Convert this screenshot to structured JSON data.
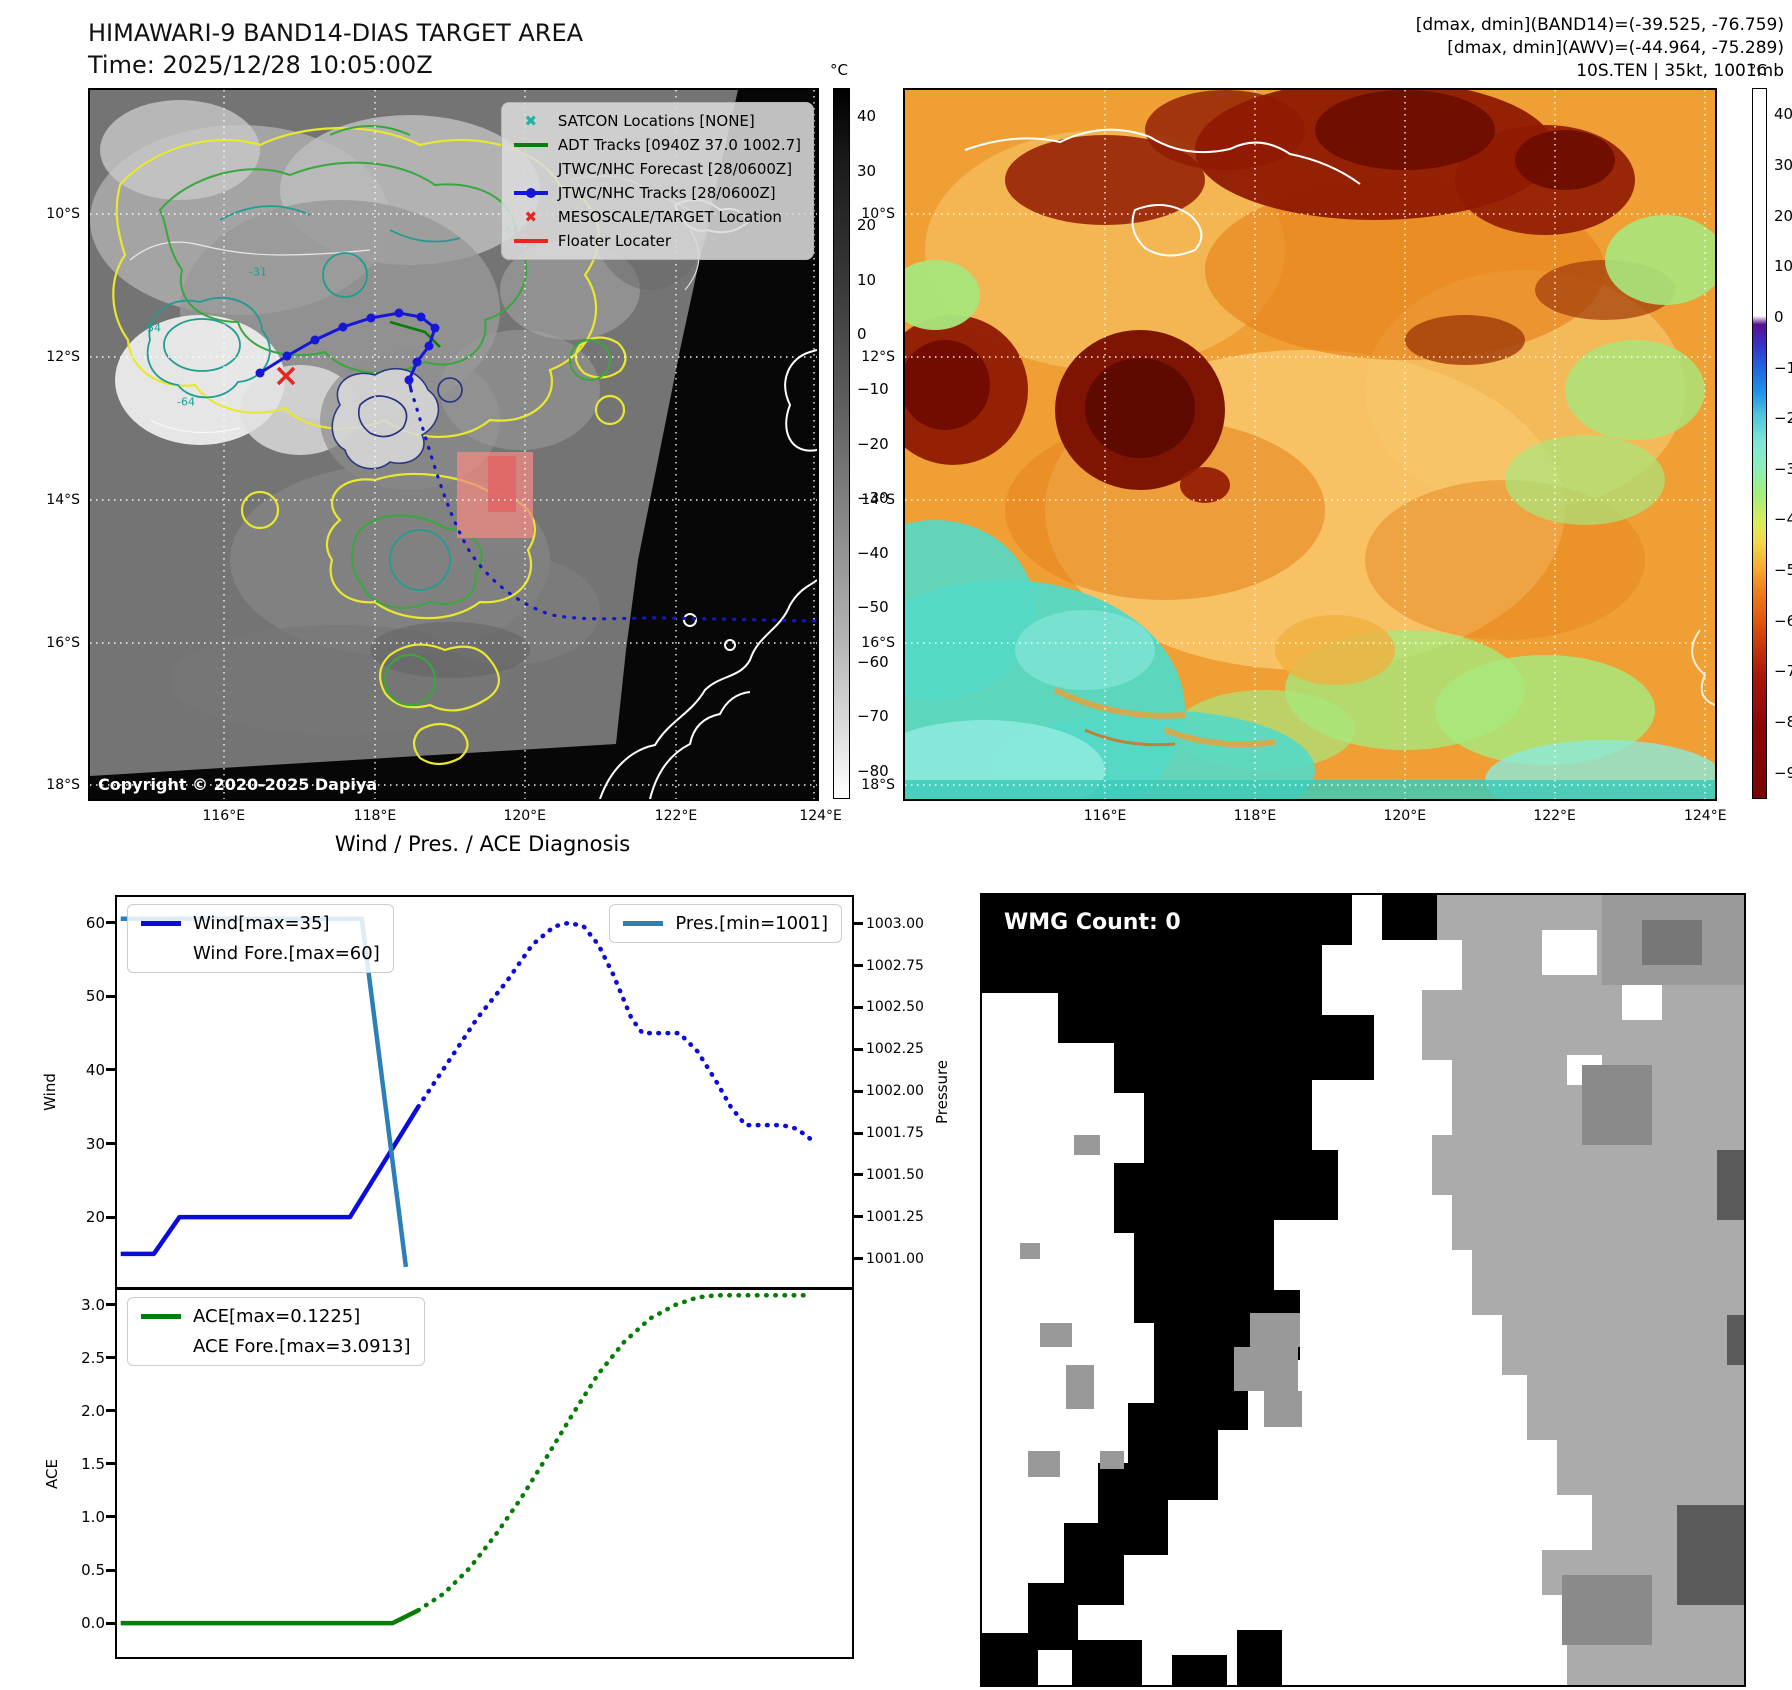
{
  "header": {
    "title": "HIMAWARI-9 BAND14-DIAS TARGET AREA",
    "time": "Time: 2025/12/28 10:05:00Z",
    "info_line1": "[dmax, dmin](BAND14)=(-39.525, -76.759)",
    "info_line2": "[dmax, dmin](AWV)=(-44.964, -75.289)",
    "info_line3": "10S.TEN | 35kt, 1001mb"
  },
  "band14_map": {
    "legend": [
      {
        "label": "SATCON Locations [NONE]",
        "marker": "x",
        "color": "#1fb3a7"
      },
      {
        "label": "ADT Tracks [0940Z 37.0 1002.7]",
        "marker": "line",
        "color": "#087d08"
      },
      {
        "label": "JTWC/NHC Forecast [28/0600Z]",
        "marker": "dotted",
        "color": "#2222e6"
      },
      {
        "label": "JTWC/NHC Tracks [28/0600Z]",
        "marker": "line-dot",
        "color": "#1616d9"
      },
      {
        "label": "MESOSCALE/TARGET Location",
        "marker": "x",
        "color": "#e8251f"
      },
      {
        "label": "Floater Locater",
        "marker": "line",
        "color": "#e8251f"
      }
    ],
    "contour_labels": [
      "-31",
      "-54",
      "-64",
      "-64"
    ],
    "copyright": "Copyright © 2020-2025 Dapiya",
    "lat_ticks": [
      "10°S",
      "12°S",
      "14°S",
      "16°S",
      "18°S"
    ],
    "lon_ticks": [
      "116°E",
      "118°E",
      "120°E",
      "122°E",
      "124°E"
    ],
    "colorbar": {
      "unit": "°C",
      "ticks": [
        "40",
        "30",
        "20",
        "10",
        "0",
        "−10",
        "−20",
        "−30",
        "−40",
        "−50",
        "−60",
        "−70",
        "−80"
      ]
    }
  },
  "awv_map": {
    "lat_ticks": [
      "10°S",
      "12°S",
      "14°S",
      "16°S",
      "18°S"
    ],
    "lon_ticks": [
      "116°E",
      "118°E",
      "120°E",
      "122°E",
      "124°E"
    ],
    "colorbar": {
      "unit": "°C",
      "ticks": [
        "40",
        "30",
        "20",
        "10",
        "0",
        "−10",
        "−20",
        "−30",
        "−40",
        "−50",
        "−60",
        "−70",
        "−80",
        "−90"
      ]
    }
  },
  "diagnosis": {
    "title": "Wind / Pres. / ACE Diagnosis"
  },
  "wmg": {
    "count_label": "WMG Count: 0"
  },
  "chart_data": [
    {
      "type": "line",
      "name": "wind-pressure",
      "title": "Wind / Pres. / ACE Diagnosis",
      "xlabel": "",
      "ylabel": "Wind",
      "y2label": "Pressure",
      "ylim": [
        10.5,
        63.5
      ],
      "yticks": [
        "20",
        "30",
        "40",
        "50",
        "60"
      ],
      "y2lim": [
        1000.83,
        1003.16
      ],
      "y2ticks": [
        "1001.00",
        "1001.25",
        "1001.50",
        "1001.75",
        "1002.00",
        "1002.25",
        "1002.50",
        "1002.75",
        "1003.00"
      ],
      "xlim": [
        0,
        1
      ],
      "grid": false,
      "series": [
        {
          "name": "Wind[max=35]",
          "color": "#0b0bdc",
          "style": "solid",
          "axis": "y",
          "points": [
            [
              0.005,
              15
            ],
            [
              0.05,
              15
            ],
            [
              0.085,
              20
            ],
            [
              0.317,
              20
            ],
            [
              0.41,
              35
            ]
          ]
        },
        {
          "name": "Wind Fore.[max=60]",
          "color": "#0b0bdc",
          "style": "dotted",
          "axis": "y",
          "points": [
            [
              0.41,
              35
            ],
            [
              0.45,
              41
            ],
            [
              0.49,
              47
            ],
            [
              0.53,
              52
            ],
            [
              0.565,
              57
            ],
            [
              0.595,
              59.5
            ],
            [
              0.615,
              60
            ],
            [
              0.635,
              59.5
            ],
            [
              0.655,
              57
            ],
            [
              0.675,
              53
            ],
            [
              0.7,
              47
            ],
            [
              0.715,
              45
            ],
            [
              0.765,
              45
            ],
            [
              0.79,
              42.5
            ],
            [
              0.815,
              38.5
            ],
            [
              0.835,
              35
            ],
            [
              0.855,
              32.5
            ],
            [
              0.905,
              32.5
            ],
            [
              0.925,
              32
            ],
            [
              0.945,
              30.5
            ]
          ]
        },
        {
          "name": "Pres.[min=1001]",
          "color": "#2d7fb8",
          "style": "solid",
          "axis": "y2",
          "points": [
            [
              0.005,
              1003.03
            ],
            [
              0.333,
              1003.03
            ],
            [
              0.393,
              1000.95
            ]
          ]
        }
      ],
      "legend_boxes": [
        {
          "position": "top-left",
          "series": [
            0,
            1
          ]
        },
        {
          "position": "top-right",
          "series": [
            2
          ]
        }
      ]
    },
    {
      "type": "line",
      "name": "ace",
      "xlabel": "",
      "ylabel": "ACE",
      "ylim": [
        -0.32,
        3.14
      ],
      "yticks": [
        "0.0",
        "0.5",
        "1.0",
        "1.5",
        "2.0",
        "2.5",
        "3.0"
      ],
      "xlim": [
        0,
        1
      ],
      "grid": false,
      "series": [
        {
          "name": "ACE[max=0.1225]",
          "color": "#067d06",
          "style": "solid",
          "axis": "y",
          "points": [
            [
              0.005,
              0.0
            ],
            [
              0.375,
              0.0
            ],
            [
              0.41,
              0.12
            ]
          ]
        },
        {
          "name": "ACE Fore.[max=3.0913]",
          "color": "#067d06",
          "style": "dotted",
          "axis": "y",
          "points": [
            [
              0.41,
              0.12
            ],
            [
              0.445,
              0.28
            ],
            [
              0.48,
              0.52
            ],
            [
              0.515,
              0.83
            ],
            [
              0.55,
              1.18
            ],
            [
              0.585,
              1.57
            ],
            [
              0.62,
              1.97
            ],
            [
              0.655,
              2.35
            ],
            [
              0.69,
              2.65
            ],
            [
              0.725,
              2.87
            ],
            [
              0.76,
              3.0
            ],
            [
              0.79,
              3.07
            ],
            [
              0.815,
              3.09
            ],
            [
              0.945,
              3.09
            ]
          ]
        }
      ],
      "legend_boxes": [
        {
          "position": "top-left",
          "series": [
            0,
            1
          ]
        }
      ]
    }
  ]
}
